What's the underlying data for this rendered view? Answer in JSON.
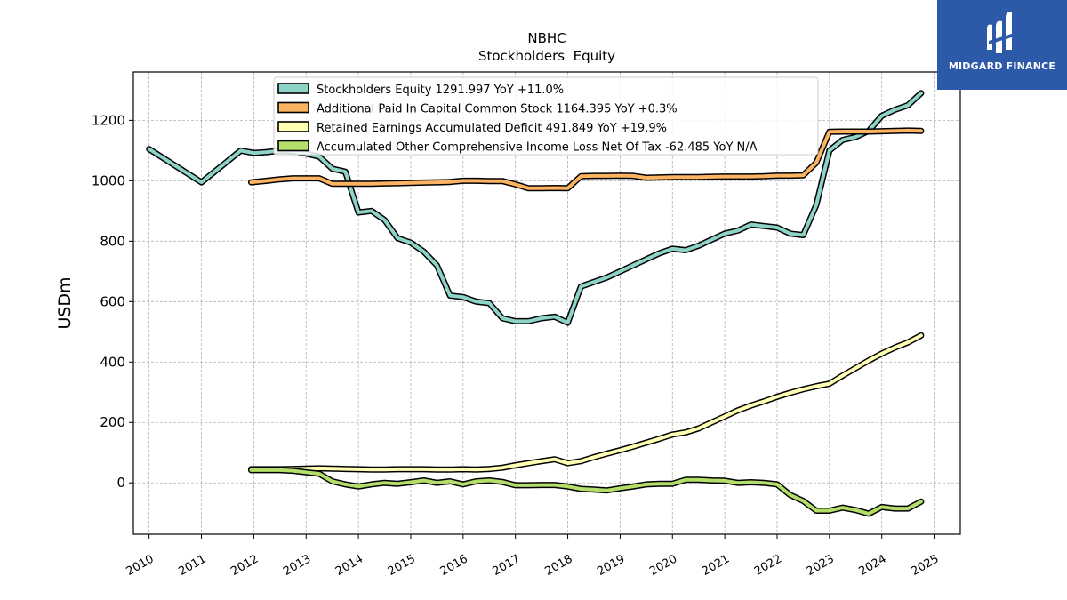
{
  "brand": {
    "name": "MIDGARD FINANCE",
    "bg_color": "#2d5aa8",
    "icon": "midgard-logo-icon"
  },
  "chart_data": {
    "type": "line",
    "title": "NBHC",
    "subtitle": "Stockholders  Equity",
    "xlabel": "",
    "ylabel": "USDm",
    "xlim": [
      2009.7,
      2025.5
    ],
    "ylim": [
      -170,
      1360
    ],
    "x_ticks": [
      "2010",
      "2011",
      "2012",
      "2013",
      "2014",
      "2015",
      "2016",
      "2017",
      "2018",
      "2019",
      "2020",
      "2021",
      "2022",
      "2023",
      "2024",
      "2025"
    ],
    "y_ticks": [
      0,
      200,
      400,
      600,
      800,
      1000,
      1200
    ],
    "grid": true,
    "legend_position": "top",
    "series": [
      {
        "name": "Stockholders Equity",
        "legend": "Stockholders Equity  1291.997 YoY +11.0%",
        "color": "#8dd3c7",
        "x": [
          2010.0,
          2011.0,
          2011.75,
          2012.0,
          2012.25,
          2012.5,
          2012.75,
          2013.0,
          2013.25,
          2013.5,
          2013.75,
          2014.0,
          2014.25,
          2014.5,
          2014.75,
          2015.0,
          2015.25,
          2015.5,
          2015.75,
          2016.0,
          2016.25,
          2016.5,
          2016.75,
          2017.0,
          2017.25,
          2017.5,
          2017.75,
          2018.0,
          2018.25,
          2018.5,
          2018.75,
          2019.0,
          2019.25,
          2019.5,
          2019.75,
          2020.0,
          2020.25,
          2020.5,
          2020.75,
          2021.0,
          2021.25,
          2021.5,
          2021.75,
          2022.0,
          2022.25,
          2022.5,
          2022.75,
          2023.0,
          2023.25,
          2023.5,
          2023.75,
          2024.0,
          2024.25,
          2024.5,
          2024.75
        ],
        "y": [
          1105,
          995,
          1100,
          1092,
          1095,
          1100,
          1098,
          1090,
          1080,
          1040,
          1030,
          895,
          900,
          870,
          810,
          795,
          765,
          720,
          620,
          615,
          600,
          595,
          545,
          535,
          535,
          545,
          550,
          530,
          650,
          665,
          680,
          700,
          720,
          740,
          760,
          775,
          770,
          785,
          805,
          825,
          835,
          855,
          850,
          845,
          825,
          820,
          920,
          1100,
          1135,
          1145,
          1165,
          1215,
          1235,
          1250,
          1290
        ]
      },
      {
        "name": "Additional Paid In Capital Common Stock",
        "legend": "Additional Paid In Capital Common Stock  1164.395 YoY +0.3%",
        "color": "#fdb462",
        "x": [
          2011.95,
          2012.25,
          2012.5,
          2012.75,
          2013.0,
          2013.25,
          2013.5,
          2013.75,
          2014.0,
          2014.25,
          2014.5,
          2014.75,
          2015.0,
          2015.25,
          2015.5,
          2015.75,
          2016.0,
          2016.25,
          2016.5,
          2016.75,
          2017.0,
          2017.25,
          2017.5,
          2017.75,
          2018.0,
          2018.25,
          2018.5,
          2018.75,
          2019.0,
          2019.25,
          2019.5,
          2019.75,
          2020.0,
          2020.25,
          2020.5,
          2020.75,
          2021.0,
          2021.25,
          2021.5,
          2021.75,
          2022.0,
          2022.25,
          2022.5,
          2022.75,
          2023.0,
          2023.25,
          2023.5,
          2023.75,
          2024.0,
          2024.25,
          2024.5,
          2024.75
        ],
        "y": [
          995,
          1000,
          1005,
          1008,
          1008,
          1008,
          990,
          990,
          990,
          990,
          991,
          992,
          993,
          994,
          995,
          996,
          1000,
          1000,
          999,
          999,
          988,
          975,
          975,
          976,
          975,
          1015,
          1016,
          1016,
          1017,
          1016,
          1010,
          1011,
          1012,
          1012,
          1012,
          1013,
          1014,
          1014,
          1014,
          1015,
          1017,
          1017,
          1018,
          1060,
          1162,
          1163,
          1163,
          1163,
          1164,
          1165,
          1166,
          1165
        ]
      },
      {
        "name": "Retained Earnings Accumulated Deficit",
        "legend": "Retained Earnings Accumulated Deficit  491.849 YoY +19.9%",
        "color": "#ffffb3",
        "x": [
          2011.95,
          2012.25,
          2012.5,
          2012.75,
          2013.0,
          2013.25,
          2013.5,
          2013.75,
          2014.0,
          2014.25,
          2014.5,
          2014.75,
          2015.0,
          2015.25,
          2015.5,
          2015.75,
          2016.0,
          2016.25,
          2016.5,
          2016.75,
          2017.0,
          2017.25,
          2017.5,
          2017.75,
          2018.0,
          2018.25,
          2018.5,
          2018.75,
          2019.0,
          2019.25,
          2019.5,
          2019.75,
          2020.0,
          2020.25,
          2020.5,
          2020.75,
          2021.0,
          2021.25,
          2021.5,
          2021.75,
          2022.0,
          2022.25,
          2022.5,
          2022.75,
          2023.0,
          2023.25,
          2023.5,
          2023.75,
          2024.0,
          2024.25,
          2024.5,
          2024.75
        ],
        "y": [
          45,
          45,
          45,
          46,
          47,
          48,
          47,
          46,
          45,
          44,
          44,
          45,
          45,
          45,
          44,
          44,
          45,
          44,
          46,
          50,
          58,
          65,
          72,
          78,
          65,
          72,
          85,
          97,
          108,
          120,
          133,
          146,
          160,
          167,
          180,
          200,
          220,
          240,
          256,
          270,
          285,
          298,
          310,
          320,
          328,
          355,
          380,
          405,
          428,
          448,
          465,
          488
        ]
      },
      {
        "name": "Accumulated Other Comprehensive Income Loss Net Of Tax",
        "legend": "Accumulated Other Comprehensive Income Loss Net Of Tax  -62.485 YoY N/A",
        "color": "#b3de69",
        "x": [
          2011.95,
          2012.25,
          2012.5,
          2012.75,
          2013.0,
          2013.25,
          2013.5,
          2013.75,
          2014.0,
          2014.25,
          2014.5,
          2014.75,
          2015.0,
          2015.25,
          2015.5,
          2015.75,
          2016.0,
          2016.25,
          2016.5,
          2016.75,
          2017.0,
          2017.25,
          2017.5,
          2017.75,
          2018.0,
          2018.25,
          2018.5,
          2018.75,
          2019.0,
          2019.25,
          2019.5,
          2019.75,
          2020.0,
          2020.25,
          2020.5,
          2020.75,
          2021.0,
          2021.25,
          2021.5,
          2021.75,
          2022.0,
          2022.25,
          2022.5,
          2022.75,
          2023.0,
          2023.25,
          2023.5,
          2023.75,
          2024.0,
          2024.25,
          2024.5,
          2024.75
        ],
        "y": [
          42,
          42,
          42,
          40,
          35,
          30,
          5,
          -5,
          -12,
          -5,
          0,
          -3,
          2,
          8,
          0,
          5,
          -5,
          5,
          8,
          3,
          -8,
          -8,
          -7,
          -7,
          -12,
          -20,
          -22,
          -25,
          -18,
          -12,
          -5,
          -3,
          -3,
          10,
          10,
          8,
          7,
          0,
          2,
          0,
          -5,
          -40,
          -60,
          -92,
          -92,
          -82,
          -90,
          -102,
          -80,
          -85,
          -85,
          -62
        ]
      }
    ]
  }
}
